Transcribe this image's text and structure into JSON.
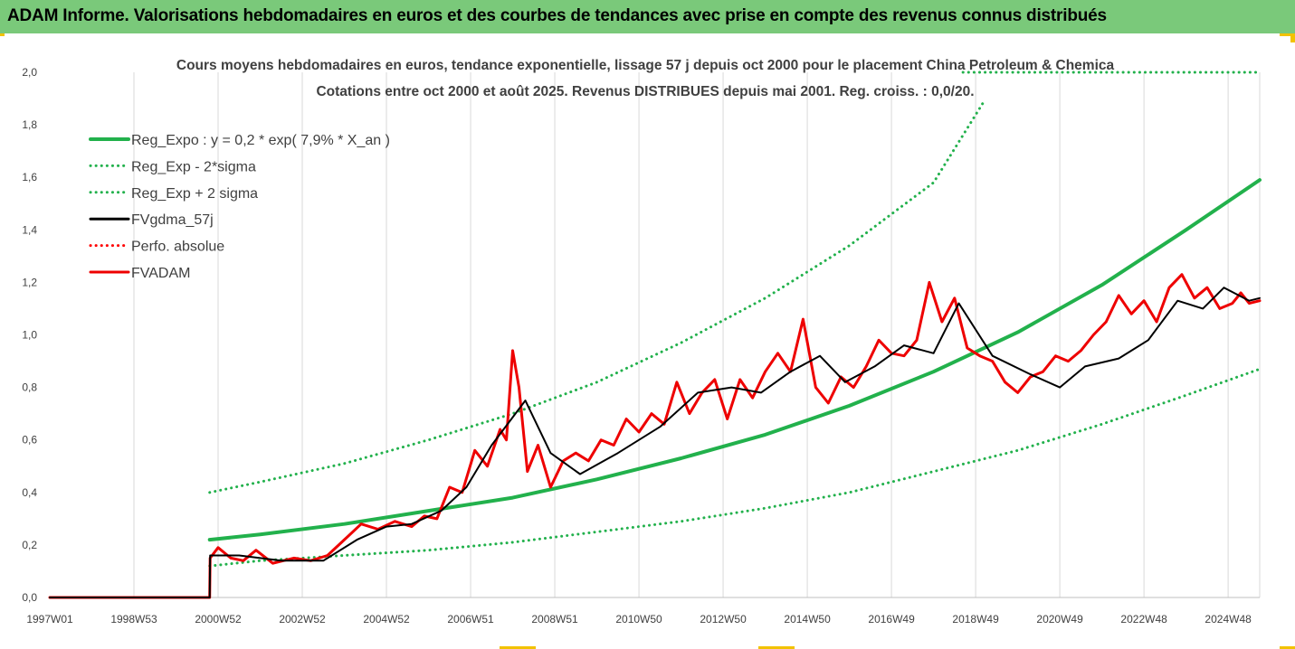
{
  "banner": {
    "title": "ADAM Informe. Valorisations hebdomadaires en euros et des courbes de tendances avec prise en compte des revenus connus distribués",
    "color": "#7ac97a"
  },
  "chart_data": {
    "type": "line",
    "title": "Cours moyens hebdomadaires en euros, tendance exponentielle, lissage 57 j depuis oct 2000 pour le placement China Petroleum & Chemica",
    "subtitle": "Cotations entre oct 2000 et août 2025.  Revenus DISTRIBUES depuis mai 2001. Reg. croiss. : 0,0/20.",
    "xlabel": "",
    "ylabel": "",
    "x_range": [
      1997.0,
      2025.75
    ],
    "ylim": [
      0,
      2.0
    ],
    "y_ticks": [
      "0,0",
      "0,2",
      "0,4",
      "0,6",
      "0,8",
      "1,0",
      "1,2",
      "1,4",
      "1,6",
      "1,8",
      "2,0"
    ],
    "x_ticks": [
      {
        "label": "1997W01",
        "x": 1997.0
      },
      {
        "label": "1998W53",
        "x": 1999.0
      },
      {
        "label": "2000W52",
        "x": 2001.0
      },
      {
        "label": "2002W52",
        "x": 2003.0
      },
      {
        "label": "2004W52",
        "x": 2005.0
      },
      {
        "label": "2006W51",
        "x": 2007.0
      },
      {
        "label": "2008W51",
        "x": 2009.0
      },
      {
        "label": "2010W50",
        "x": 2011.0
      },
      {
        "label": "2012W50",
        "x": 2013.0
      },
      {
        "label": "2014W50",
        "x": 2015.0
      },
      {
        "label": "2016W49",
        "x": 2017.0
      },
      {
        "label": "2018W49",
        "x": 2019.0
      },
      {
        "label": "2020W49",
        "x": 2021.0
      },
      {
        "label": "2022W48",
        "x": 2023.0
      },
      {
        "label": "2024W48",
        "x": 2025.0
      }
    ],
    "grid": "vertical",
    "legend_position": "top-left",
    "series": [
      {
        "name": "Reg_Expo : y = 0,2 * exp( 7,9% *  X_an )",
        "color": "#22b14c",
        "style": "solid",
        "x": [
          2000.8,
          2002,
          2004,
          2006,
          2008,
          2010,
          2012,
          2014,
          2016,
          2018,
          2020,
          2022,
          2024,
          2025.75
        ],
        "y": [
          0.22,
          0.24,
          0.28,
          0.33,
          0.38,
          0.45,
          0.53,
          0.62,
          0.73,
          0.86,
          1.01,
          1.19,
          1.4,
          1.59
        ]
      },
      {
        "name": "Reg_Exp - 2*sigma",
        "color": "#22b14c",
        "style": "dotted",
        "x": [
          2000.8,
          2002,
          2004,
          2006,
          2008,
          2010,
          2012,
          2014,
          2016,
          2018,
          2020,
          2022,
          2024,
          2025.75
        ],
        "y": [
          0.12,
          0.14,
          0.16,
          0.18,
          0.21,
          0.25,
          0.29,
          0.34,
          0.4,
          0.48,
          0.56,
          0.66,
          0.77,
          0.87
        ]
      },
      {
        "name": "Reg_Exp + 2 sigma",
        "color": "#22b14c",
        "style": "dotted",
        "x": [
          2000.8,
          2002,
          2004,
          2006,
          2008,
          2010,
          2012,
          2014,
          2016,
          2018,
          2019.2
        ],
        "y": [
          0.4,
          0.44,
          0.51,
          0.6,
          0.7,
          0.82,
          0.97,
          1.14,
          1.34,
          1.58,
          1.89
        ]
      },
      {
        "name": "FVgdma_57j",
        "color": "#000000",
        "style": "solid",
        "x": [
          1997.0,
          2000.8,
          2000.81,
          2001.5,
          2002.5,
          2003.5,
          2004.3,
          2005.0,
          2005.6,
          2006.3,
          2006.9,
          2007.5,
          2008.3,
          2008.9,
          2009.6,
          2010.5,
          2011.5,
          2012.4,
          2013.2,
          2013.9,
          2014.6,
          2015.3,
          2015.9,
          2016.6,
          2017.3,
          2018.0,
          2018.6,
          2019.4,
          2020.3,
          2021.0,
          2021.6,
          2022.4,
          2023.1,
          2023.8,
          2024.4,
          2024.9,
          2025.5,
          2025.75
        ],
        "y": [
          0.0,
          0.0,
          0.16,
          0.16,
          0.14,
          0.14,
          0.22,
          0.27,
          0.28,
          0.33,
          0.42,
          0.58,
          0.75,
          0.55,
          0.47,
          0.55,
          0.65,
          0.78,
          0.8,
          0.78,
          0.86,
          0.92,
          0.82,
          0.88,
          0.96,
          0.93,
          1.12,
          0.92,
          0.85,
          0.8,
          0.88,
          0.91,
          0.98,
          1.13,
          1.1,
          1.18,
          1.13,
          1.14
        ]
      },
      {
        "name": "Perfo. absolue",
        "color": "#ff0000",
        "style": "dotted",
        "x": [],
        "y": []
      },
      {
        "name": "FVADAM",
        "color": "#ee0000",
        "style": "solid",
        "x": [
          1997.0,
          2000.8,
          2000.81,
          2001.0,
          2001.3,
          2001.6,
          2001.9,
          2002.3,
          2002.8,
          2003.2,
          2003.6,
          2004.0,
          2004.4,
          2004.8,
          2005.2,
          2005.6,
          2005.9,
          2006.2,
          2006.5,
          2006.8,
          2007.1,
          2007.4,
          2007.7,
          2007.85,
          2008.0,
          2008.15,
          2008.35,
          2008.6,
          2008.9,
          2009.2,
          2009.5,
          2009.8,
          2010.1,
          2010.4,
          2010.7,
          2011.0,
          2011.3,
          2011.6,
          2011.9,
          2012.2,
          2012.5,
          2012.8,
          2013.1,
          2013.4,
          2013.7,
          2014.0,
          2014.3,
          2014.6,
          2014.9,
          2015.2,
          2015.5,
          2015.8,
          2016.1,
          2016.4,
          2016.7,
          2017.0,
          2017.3,
          2017.6,
          2017.9,
          2018.2,
          2018.5,
          2018.8,
          2019.1,
          2019.4,
          2019.7,
          2020.0,
          2020.3,
          2020.6,
          2020.9,
          2021.2,
          2021.5,
          2021.8,
          2022.1,
          2022.4,
          2022.7,
          2023.0,
          2023.3,
          2023.6,
          2023.9,
          2024.2,
          2024.5,
          2024.8,
          2025.1,
          2025.3,
          2025.5,
          2025.75
        ],
        "y": [
          0.0,
          0.0,
          0.15,
          0.19,
          0.15,
          0.14,
          0.18,
          0.13,
          0.15,
          0.14,
          0.16,
          0.22,
          0.28,
          0.26,
          0.29,
          0.27,
          0.31,
          0.3,
          0.42,
          0.4,
          0.56,
          0.5,
          0.64,
          0.6,
          0.94,
          0.8,
          0.48,
          0.58,
          0.42,
          0.52,
          0.55,
          0.52,
          0.6,
          0.58,
          0.68,
          0.63,
          0.7,
          0.66,
          0.82,
          0.7,
          0.78,
          0.83,
          0.68,
          0.83,
          0.76,
          0.86,
          0.93,
          0.86,
          1.06,
          0.8,
          0.74,
          0.84,
          0.8,
          0.88,
          0.98,
          0.93,
          0.92,
          0.98,
          1.2,
          1.05,
          1.14,
          0.95,
          0.92,
          0.9,
          0.82,
          0.78,
          0.84,
          0.86,
          0.92,
          0.9,
          0.94,
          1.0,
          1.05,
          1.15,
          1.08,
          1.13,
          1.05,
          1.18,
          1.23,
          1.14,
          1.18,
          1.1,
          1.12,
          1.16,
          1.12,
          1.13
        ]
      }
    ]
  }
}
